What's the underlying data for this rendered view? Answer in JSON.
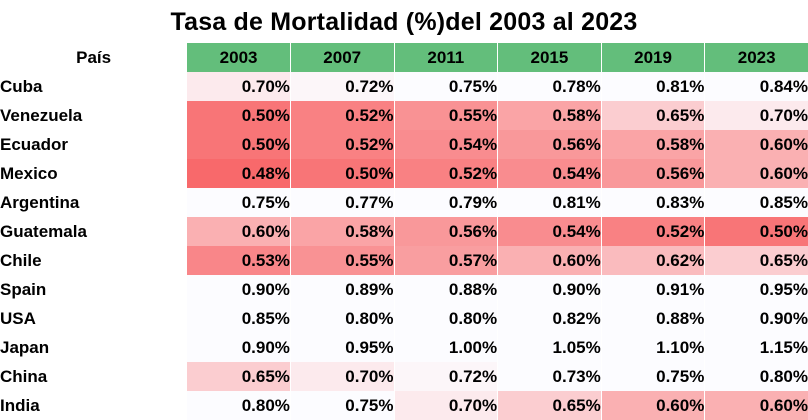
{
  "chart_data": {
    "type": "heatmap",
    "title": "Tasa de Mortalidad (%)del  2003 al 2023",
    "row_header": "País",
    "columns": [
      "2003",
      "2007",
      "2011",
      "2015",
      "2019",
      "2023"
    ],
    "rows": [
      {
        "country": "Cuba",
        "values": [
          "0.70%",
          "0.72%",
          "0.75%",
          "0.78%",
          "0.81%",
          "0.84%"
        ]
      },
      {
        "country": "Venezuela",
        "values": [
          "0.50%",
          "0.52%",
          "0.55%",
          "0.58%",
          "0.65%",
          "0.70%"
        ]
      },
      {
        "country": "Ecuador",
        "values": [
          "0.50%",
          "0.52%",
          "0.54%",
          "0.56%",
          "0.58%",
          "0.60%"
        ]
      },
      {
        "country": "Mexico",
        "values": [
          "0.48%",
          "0.50%",
          "0.52%",
          "0.54%",
          "0.56%",
          "0.60%"
        ]
      },
      {
        "country": "Argentina",
        "values": [
          "0.75%",
          "0.77%",
          "0.79%",
          "0.81%",
          "0.83%",
          "0.85%"
        ]
      },
      {
        "country": "Guatemala",
        "values": [
          "0.60%",
          "0.58%",
          "0.56%",
          "0.54%",
          "0.52%",
          "0.50%"
        ]
      },
      {
        "country": "Chile",
        "values": [
          "0.53%",
          "0.55%",
          "0.57%",
          "0.60%",
          "0.62%",
          "0.65%"
        ]
      },
      {
        "country": "Spain",
        "values": [
          "0.90%",
          "0.89%",
          "0.88%",
          "0.90%",
          "0.91%",
          "0.95%"
        ]
      },
      {
        "country": "USA",
        "values": [
          "0.85%",
          "0.80%",
          "0.80%",
          "0.82%",
          "0.88%",
          "0.90%"
        ]
      },
      {
        "country": "Japan",
        "values": [
          "0.90%",
          "0.95%",
          "1.00%",
          "1.05%",
          "1.10%",
          "1.15%"
        ]
      },
      {
        "country": "China",
        "values": [
          "0.65%",
          "0.70%",
          "0.72%",
          "0.73%",
          "0.75%",
          "0.80%"
        ]
      },
      {
        "country": "India",
        "values": [
          "0.80%",
          "0.75%",
          "0.70%",
          "0.65%",
          "0.60%",
          "0.60%"
        ]
      }
    ],
    "header_color": "#63be7b",
    "scale_low_color": "#f8696b",
    "scale_high_color": "#fcfcff"
  }
}
